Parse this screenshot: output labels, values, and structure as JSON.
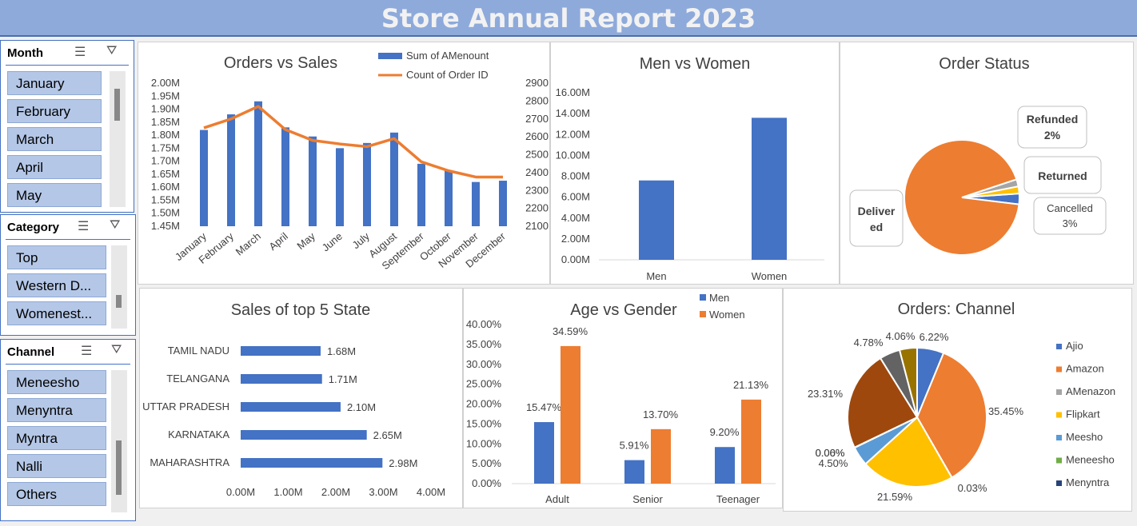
{
  "report_title": "Store Annual Report 2023",
  "slicers": {
    "month": {
      "title": "Month",
      "items": [
        "January",
        "February",
        "March",
        "April",
        "May"
      ]
    },
    "category": {
      "title": "Category",
      "items": [
        "Top",
        "Western D...",
        "Womenest..."
      ]
    },
    "channel": {
      "title": "Channel",
      "items": [
        "Meneesho",
        "Menyntra",
        "Myntra",
        "Nalli",
        "Others"
      ]
    }
  },
  "icons": {
    "multi_select": "multi-select-icon",
    "clear_filter": "clear-filter-icon"
  },
  "colors": {
    "blue": "#4472c4",
    "orange": "#ed7d31",
    "gray": "#a5a5a5",
    "gold": "#ffc000",
    "light_blue": "#5b9bd5",
    "green": "#70ad47",
    "navy": "#264478",
    "brown": "#9e480e",
    "dark_gray": "#636363",
    "olive": "#997300",
    "header": "#8eaadb"
  },
  "chart_data": [
    {
      "id": "orders_vs_sales",
      "type": "bar",
      "title": "Orders vs Sales",
      "categories": [
        "January",
        "February",
        "March",
        "April",
        "May",
        "June",
        "July",
        "August",
        "September",
        "October",
        "November",
        "December"
      ],
      "series": [
        {
          "name": "Sum of AMenount",
          "axis": "left",
          "values": [
            1.82,
            1.88,
            1.93,
            1.83,
            1.795,
            1.75,
            1.77,
            1.81,
            1.69,
            1.665,
            1.62,
            1.625
          ]
        },
        {
          "name": "Count of Order ID",
          "axis": "right",
          "type": "line",
          "values": [
            2650,
            2700,
            2770,
            2640,
            2580,
            2560,
            2545,
            2590,
            2460,
            2410,
            2375,
            2375
          ]
        }
      ],
      "y_ticks": [
        "2.00M",
        "1.95M",
        "1.90M",
        "1.85M",
        "1.80M",
        "1.75M",
        "1.70M",
        "1.65M",
        "1.60M",
        "1.55M",
        "1.50M",
        "1.45M"
      ],
      "ylim": [
        1.45,
        2.0
      ],
      "y2_ticks": [
        "2900",
        "2800",
        "2700",
        "2600",
        "2500",
        "2400",
        "2300",
        "2200",
        "2100"
      ],
      "y2lim": [
        2100,
        2900
      ]
    },
    {
      "id": "men_vs_women",
      "type": "bar",
      "title": "Men vs Women",
      "categories": [
        "Men",
        "Women"
      ],
      "values": [
        7.6,
        13.6
      ],
      "y_ticks": [
        "16.00M",
        "14.00M",
        "12.00M",
        "10.00M",
        "8.00M",
        "6.00M",
        "4.00M",
        "2.00M",
        "0.00M"
      ],
      "ylim": [
        0,
        16
      ]
    },
    {
      "id": "order_status",
      "type": "pie",
      "title": "Order Status",
      "slices": [
        {
          "label": "Delivered",
          "value": 93,
          "display": "Deliver\ned"
        },
        {
          "label": "Cancelled",
          "value": 3,
          "display": "Cancelled\n3%"
        },
        {
          "label": "Returned",
          "value": 2,
          "display": "Returned"
        },
        {
          "label": "Refunded",
          "value": 2,
          "display": "Refunded\n2%"
        }
      ]
    },
    {
      "id": "top5_state",
      "type": "bar",
      "orientation": "horizontal",
      "title": "Sales of top 5 State",
      "categories": [
        "TAMIL NADU",
        "TELANGANA",
        "UTTAR PRADESH",
        "KARNATAKA",
        "MAHARASHTRA"
      ],
      "values": [
        1.68,
        1.71,
        2.1,
        2.65,
        2.98
      ],
      "data_labels": [
        "1.68M",
        "1.71M",
        "2.10M",
        "2.65M",
        "2.98M"
      ],
      "x_ticks": [
        "0.00M",
        "1.00M",
        "2.00M",
        "3.00M",
        "4.00M"
      ],
      "xlim": [
        0,
        4
      ]
    },
    {
      "id": "age_vs_gender",
      "type": "bar",
      "title": "Age vs Gender",
      "categories": [
        "Adult",
        "Senior",
        "Teenager"
      ],
      "series": [
        {
          "name": "Men",
          "values": [
            15.47,
            5.91,
            9.2
          ],
          "labels": [
            "15.47%",
            "5.91%",
            "9.20%"
          ]
        },
        {
          "name": "Women",
          "values": [
            34.59,
            13.7,
            21.13
          ],
          "labels": [
            "34.59%",
            "13.70%",
            "21.13%"
          ]
        }
      ],
      "y_ticks": [
        "40.00%",
        "35.00%",
        "30.00%",
        "25.00%",
        "20.00%",
        "15.00%",
        "10.00%",
        "5.00%",
        "0.00%"
      ],
      "ylim": [
        0,
        40
      ]
    },
    {
      "id": "orders_channel",
      "type": "pie",
      "title": "Orders: Channel",
      "legend": [
        "Ajio",
        "Amazon",
        "AMenazon",
        "Flipkart",
        "Meesho",
        "Meneesho",
        "Menyntra"
      ],
      "slices": [
        {
          "label": "Ajio",
          "value": 6.22,
          "display": "6.22%"
        },
        {
          "label": "Amazon",
          "value": 35.45,
          "display": "35.45%"
        },
        {
          "label": "AMenazon",
          "value": 0.03,
          "display": "0.03%"
        },
        {
          "label": "Flipkart",
          "value": 21.59,
          "display": "21.59%"
        },
        {
          "label": "Meesho",
          "value": 4.5,
          "display": "4.50%"
        },
        {
          "label": "Meneesho",
          "value": 0.0,
          "display": "0.00%"
        },
        {
          "label": "Menyntra",
          "value": 0.06,
          "display": "0.06%"
        },
        {
          "label": "Myntra",
          "value": 23.31,
          "display": "23.31%"
        },
        {
          "label": "Nalli",
          "value": 4.78,
          "display": "4.78%"
        },
        {
          "label": "Others",
          "value": 4.06,
          "display": "4.06%"
        }
      ]
    }
  ]
}
